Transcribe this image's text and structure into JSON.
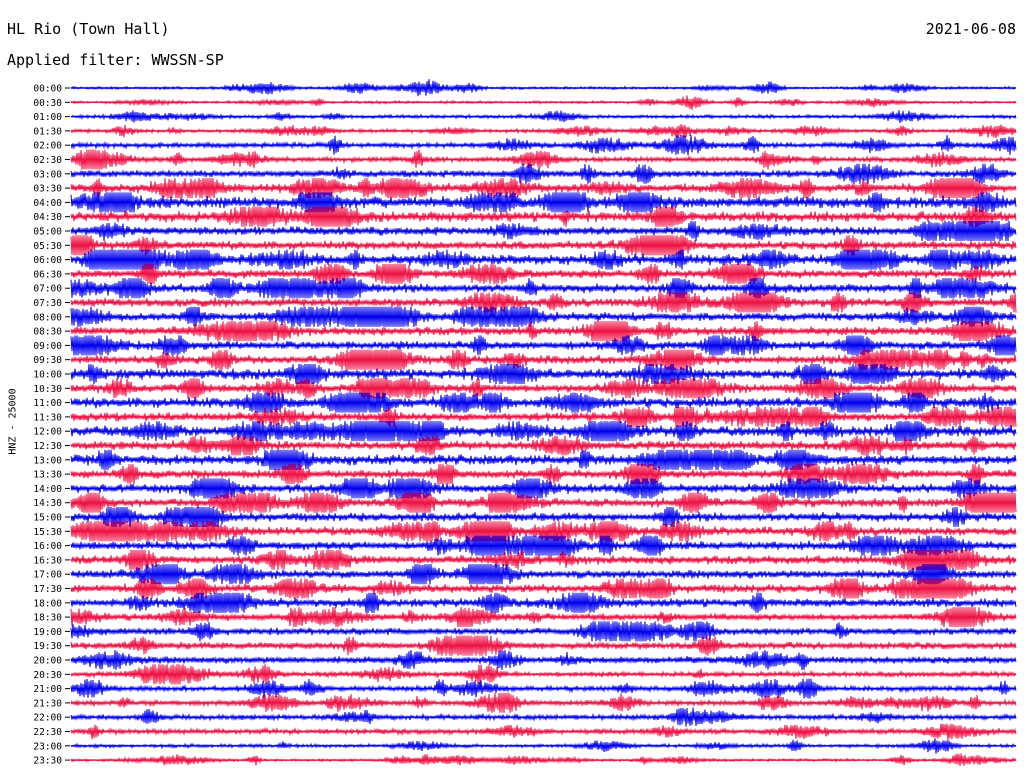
{
  "header": {
    "title": "HL Rio (Town Hall)",
    "filter": "Applied filter: WWSSN-SP",
    "date": "2021-06-08"
  },
  "chart_data": {
    "type": "line",
    "ylabel": "HNZ - 25000",
    "row_labels": [
      "00:00",
      "00:30",
      "01:00",
      "01:30",
      "02:00",
      "02:30",
      "03:00",
      "03:30",
      "04:00",
      "04:30",
      "05:00",
      "05:30",
      "06:00",
      "06:30",
      "07:00",
      "07:30",
      "08:00",
      "08:30",
      "09:00",
      "09:30",
      "10:00",
      "10:30",
      "11:00",
      "11:30",
      "12:00",
      "12:30",
      "13:00",
      "13:30",
      "14:00",
      "14:30",
      "15:00",
      "15:30",
      "16:00",
      "16:30",
      "17:00",
      "17:30",
      "18:00",
      "18:30",
      "19:00",
      "19:30",
      "20:00",
      "20:30",
      "21:00",
      "21:30",
      "22:00",
      "22:30",
      "23:00",
      "23:30"
    ],
    "series_colors": [
      "#0000ee",
      "#ee1144"
    ],
    "trace_amplitude": [
      1.5,
      1.5,
      2,
      2,
      3,
      3,
      4,
      5,
      7,
      6,
      5,
      5,
      6,
      5,
      5,
      5,
      5,
      5,
      5,
      5,
      6,
      5,
      6,
      5,
      6,
      5,
      6,
      5,
      5,
      5,
      5,
      5,
      5,
      5,
      5,
      5,
      5,
      4,
      4,
      4,
      4,
      3,
      3,
      3,
      3,
      3,
      2,
      1.5
    ]
  }
}
